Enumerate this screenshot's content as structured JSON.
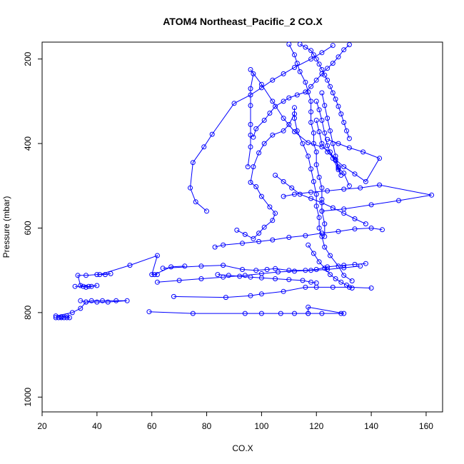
{
  "chart_data": {
    "type": "scatter",
    "title": "ATOM4 Northeast_Pacific_2 CO.X",
    "xlabel": "CO.X",
    "ylabel": "Pressure (mbar)",
    "xlim": [
      20,
      166
    ],
    "ylim": [
      1035,
      160
    ],
    "y_reversed": true,
    "x_ticks": [
      20,
      40,
      60,
      80,
      100,
      120,
      140,
      160
    ],
    "y_ticks": [
      200,
      400,
      600,
      800,
      1000
    ],
    "grid": false,
    "legend": "none",
    "colors": {
      "series": "#0000ff",
      "axes": "#000000"
    },
    "series": [
      {
        "values": [
          [
            25,
            812
          ],
          [
            26,
            812
          ],
          [
            27,
            812
          ],
          [
            28,
            812
          ],
          [
            29,
            812
          ],
          [
            30,
            812
          ],
          [
            29,
            808
          ],
          [
            27,
            810
          ],
          [
            25,
            808
          ],
          [
            31,
            800
          ],
          [
            34,
            790
          ],
          [
            36,
            775
          ],
          [
            40,
            775
          ],
          [
            44,
            775
          ],
          [
            51,
            772
          ],
          [
            47,
            772
          ],
          [
            42,
            772
          ],
          [
            38,
            772
          ],
          [
            36,
            775
          ],
          [
            34,
            772
          ]
        ]
      },
      {
        "values": [
          [
            32,
            738
          ],
          [
            35,
            738
          ],
          [
            36,
            740
          ],
          [
            38,
            738
          ],
          [
            40,
            736
          ],
          [
            37,
            738
          ],
          [
            34,
            736
          ],
          [
            33,
            712
          ],
          [
            36,
            712
          ],
          [
            40,
            710
          ],
          [
            43,
            710
          ],
          [
            45,
            708
          ],
          [
            41,
            710
          ],
          [
            52,
            688
          ],
          [
            62,
            665
          ],
          [
            60,
            710
          ],
          [
            62,
            710
          ],
          [
            61,
            710
          ],
          [
            67,
            692
          ],
          [
            72,
            690
          ]
        ]
      },
      {
        "values": [
          [
            59,
            798
          ],
          [
            75,
            802
          ],
          [
            94,
            802
          ],
          [
            100,
            802
          ],
          [
            107,
            802
          ],
          [
            112,
            802
          ],
          [
            117,
            802
          ],
          [
            122,
            802
          ],
          [
            129,
            802
          ],
          [
            130,
            802
          ],
          [
            117,
            787
          ],
          [
            117,
            802
          ]
        ]
      },
      {
        "values": [
          [
            68,
            762
          ],
          [
            87,
            764
          ],
          [
            96,
            760
          ],
          [
            100,
            756
          ],
          [
            108,
            750
          ],
          [
            116,
            740
          ],
          [
            120,
            740
          ],
          [
            126,
            740
          ],
          [
            132,
            740
          ],
          [
            140,
            742
          ]
        ]
      },
      {
        "values": [
          [
            64,
            695
          ],
          [
            78,
            690
          ],
          [
            86,
            688
          ],
          [
            93,
            698
          ],
          [
            98,
            700
          ],
          [
            102,
            698
          ],
          [
            105,
            696
          ],
          [
            110,
            700
          ],
          [
            116,
            700
          ],
          [
            120,
            698
          ],
          [
            124,
            692
          ],
          [
            130,
            688
          ],
          [
            134,
            686
          ],
          [
            138,
            684
          ]
        ]
      },
      {
        "values": [
          [
            83,
            645
          ],
          [
            86,
            640
          ],
          [
            93,
            636
          ],
          [
            99,
            632
          ],
          [
            104,
            628
          ],
          [
            110,
            622
          ],
          [
            116,
            618
          ],
          [
            122,
            612
          ],
          [
            128,
            608
          ],
          [
            134,
            602
          ],
          [
            140,
            600
          ],
          [
            144,
            604
          ]
        ]
      },
      {
        "values": [
          [
            91,
            605
          ],
          [
            94,
            615
          ],
          [
            97,
            625
          ],
          [
            99,
            612
          ],
          [
            101,
            598
          ],
          [
            104,
            582
          ],
          [
            105,
            565
          ],
          [
            103,
            550
          ],
          [
            100,
            525
          ],
          [
            98,
            502
          ],
          [
            96,
            492
          ],
          [
            97,
            455
          ],
          [
            99,
            422
          ],
          [
            101,
            400
          ],
          [
            104,
            380
          ],
          [
            108,
            370
          ],
          [
            110,
            355
          ],
          [
            112,
            330
          ]
        ]
      },
      {
        "values": [
          [
            95,
            455
          ],
          [
            96,
            408
          ],
          [
            96,
            380
          ],
          [
            96,
            355
          ],
          [
            96,
            310
          ],
          [
            96,
            270
          ],
          [
            97,
            235
          ],
          [
            96,
            225
          ],
          [
            100,
            260
          ],
          [
            104,
            300
          ],
          [
            108,
            340
          ],
          [
            112,
            372
          ],
          [
            117,
            398
          ],
          [
            122,
            408
          ],
          [
            125,
            420
          ],
          [
            127,
            440
          ],
          [
            128,
            458
          ],
          [
            130,
            470
          ],
          [
            132,
            500
          ]
        ]
      },
      {
        "values": [
          [
            80,
            560
          ],
          [
            76,
            538
          ],
          [
            74,
            505
          ],
          [
            75,
            445
          ],
          [
            79,
            408
          ],
          [
            82,
            378
          ],
          [
            90,
            305
          ],
          [
            96,
            285
          ],
          [
            100,
            268
          ],
          [
            104,
            250
          ],
          [
            108,
            235
          ],
          [
            112,
            220
          ],
          [
            118,
            200
          ],
          [
            122,
            185
          ],
          [
            126,
            168
          ]
        ]
      },
      {
        "values": [
          [
            97,
            385
          ],
          [
            98,
            365
          ],
          [
            101,
            345
          ],
          [
            103,
            328
          ],
          [
            105,
            312
          ],
          [
            108,
            300
          ],
          [
            110,
            292
          ],
          [
            113,
            285
          ],
          [
            116,
            278
          ],
          [
            118,
            265
          ],
          [
            120,
            250
          ],
          [
            122,
            235
          ],
          [
            124,
            222
          ],
          [
            126,
            210
          ],
          [
            128,
            195
          ],
          [
            130,
            178
          ],
          [
            132,
            166
          ]
        ]
      },
      {
        "values": [
          [
            112,
            315
          ],
          [
            112,
            340
          ],
          [
            113,
            370
          ],
          [
            115,
            400
          ],
          [
            117,
            430
          ],
          [
            118,
            460
          ],
          [
            119,
            490
          ],
          [
            120,
            520
          ],
          [
            120,
            548
          ],
          [
            121,
            575
          ],
          [
            121,
            600
          ],
          [
            122,
            620
          ],
          [
            123,
            645
          ],
          [
            125,
            665
          ],
          [
            128,
            690
          ],
          [
            130,
            712
          ],
          [
            133,
            725
          ]
        ]
      },
      {
        "values": [
          [
            105,
            475
          ],
          [
            108,
            490
          ],
          [
            111,
            505
          ],
          [
            114,
            520
          ],
          [
            118,
            530
          ],
          [
            122,
            540
          ],
          [
            126,
            552
          ],
          [
            130,
            565
          ],
          [
            134,
            578
          ],
          [
            138,
            590
          ]
        ]
      },
      {
        "values": [
          [
            108,
            525
          ],
          [
            112,
            520
          ],
          [
            118,
            515
          ],
          [
            124,
            512
          ],
          [
            130,
            508
          ],
          [
            136,
            505
          ],
          [
            143,
            498
          ],
          [
            162,
            522
          ],
          [
            150,
            535
          ],
          [
            140,
            545
          ],
          [
            130,
            555
          ],
          [
            122,
            560
          ]
        ]
      },
      {
        "values": [
          [
            120,
            345
          ],
          [
            121,
            372
          ],
          [
            122,
            400
          ],
          [
            124,
            420
          ],
          [
            127,
            438
          ],
          [
            130,
            455
          ],
          [
            134,
            472
          ],
          [
            138,
            490
          ],
          [
            143,
            435
          ],
          [
            137,
            420
          ],
          [
            132,
            410
          ],
          [
            128,
            400
          ],
          [
            124,
            390
          ]
        ]
      },
      {
        "values": [
          [
            120,
            300
          ],
          [
            121,
            320
          ],
          [
            122,
            345
          ],
          [
            123,
            375
          ],
          [
            124,
            405
          ],
          [
            126,
            435
          ],
          [
            128,
            462
          ],
          [
            129,
            475
          ],
          [
            128,
            455
          ],
          [
            127,
            430
          ],
          [
            126,
            400
          ],
          [
            125,
            370
          ],
          [
            124,
            340
          ],
          [
            123,
            310
          ],
          [
            122,
            280
          ]
        ]
      },
      {
        "values": [
          [
            110,
            165
          ],
          [
            112,
            190
          ],
          [
            113,
            210
          ],
          [
            114,
            230
          ],
          [
            116,
            255
          ],
          [
            117,
            278
          ],
          [
            118,
            300
          ],
          [
            118,
            325
          ],
          [
            118,
            350
          ],
          [
            119,
            375
          ],
          [
            119,
            400
          ],
          [
            120,
            420
          ],
          [
            120,
            450
          ],
          [
            121,
            480
          ],
          [
            122,
            505
          ],
          [
            122,
            532
          ],
          [
            122,
            560
          ],
          [
            123,
            590
          ],
          [
            123,
            620
          ]
        ]
      },
      {
        "values": [
          [
            114,
            165
          ],
          [
            116,
            172
          ],
          [
            118,
            180
          ],
          [
            119,
            190
          ],
          [
            120,
            200
          ],
          [
            121,
            212
          ],
          [
            122,
            225
          ],
          [
            123,
            238
          ],
          [
            124,
            250
          ],
          [
            125,
            265
          ],
          [
            126,
            280
          ],
          [
            127,
            295
          ],
          [
            128,
            312
          ],
          [
            129,
            330
          ],
          [
            130,
            350
          ],
          [
            131,
            370
          ],
          [
            132,
            388
          ]
        ]
      },
      {
        "values": [
          [
            117,
            640
          ],
          [
            119,
            660
          ],
          [
            121,
            680
          ],
          [
            123,
            695
          ],
          [
            125,
            710
          ],
          [
            127,
            720
          ],
          [
            129,
            728
          ],
          [
            131,
            735
          ],
          [
            133,
            742
          ]
        ]
      },
      {
        "values": [
          [
            84,
            710
          ],
          [
            88,
            712
          ],
          [
            92,
            714
          ],
          [
            96,
            716
          ],
          [
            100,
            718
          ],
          [
            105,
            720
          ],
          [
            110,
            722
          ],
          [
            115,
            724
          ],
          [
            118,
            728
          ],
          [
            120,
            730
          ]
        ]
      },
      {
        "values": [
          [
            62,
            728
          ],
          [
            70,
            724
          ],
          [
            78,
            720
          ],
          [
            86,
            716
          ],
          [
            94,
            712
          ],
          [
            100,
            708
          ],
          [
            106,
            704
          ],
          [
            112,
            702
          ],
          [
            118,
            700
          ],
          [
            124,
            698
          ],
          [
            130,
            694
          ],
          [
            136,
            690
          ]
        ]
      }
    ]
  }
}
